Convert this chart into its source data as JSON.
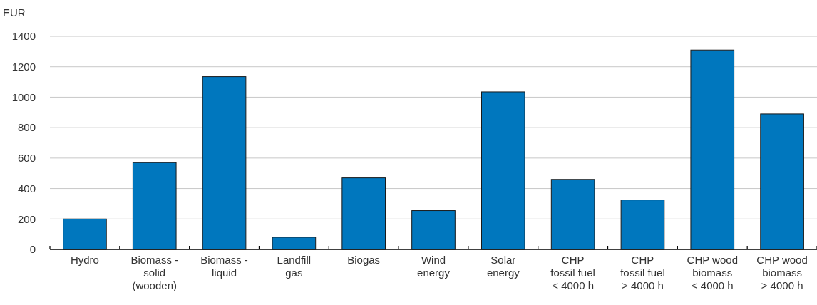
{
  "chart_data": {
    "type": "bar",
    "ylabel": "EUR",
    "categories": [
      "Hydro",
      "Biomass -\nsolid\n(wooden)",
      "Biomass -\nliquid",
      "Landfill\ngas",
      "Biogas",
      "Wind\nenergy",
      "Solar\nenergy",
      "CHP\nfossil fuel\n< 4000 h",
      "CHP\nfossil fuel\n> 4000 h",
      "CHP wood\nbiomass\n< 4000 h",
      "CHP wood\nbiomass\n> 4000 h"
    ],
    "values": [
      200,
      570,
      1135,
      80,
      470,
      255,
      1035,
      460,
      325,
      1310,
      890
    ],
    "color": "#0077be",
    "ylim": [
      0,
      1400
    ],
    "yticks": [
      0,
      200,
      400,
      600,
      800,
      1000,
      1200,
      1400
    ],
    "grid": "y"
  }
}
